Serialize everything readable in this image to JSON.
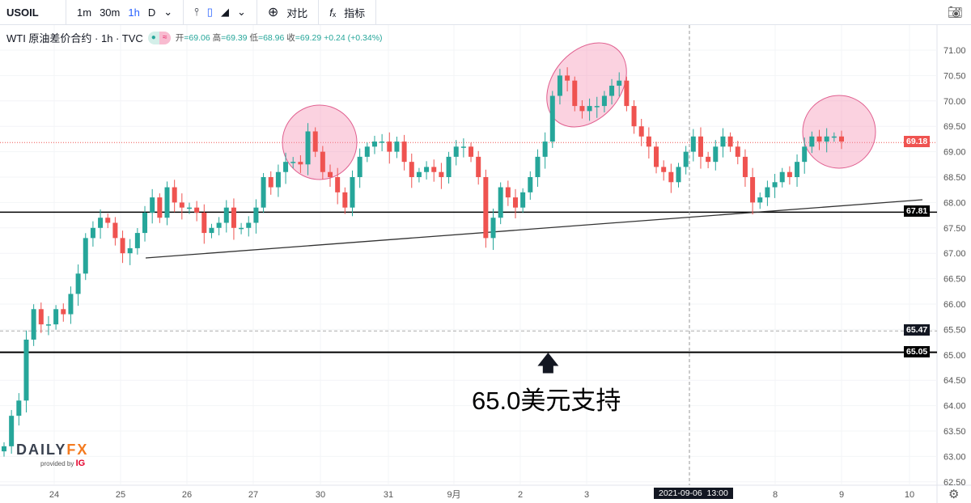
{
  "toolbar": {
    "symbol": "USOIL",
    "intervals": [
      "1m",
      "30m",
      "1h",
      "D"
    ],
    "active_interval": "1h",
    "compare": "对比",
    "indicators": "指标"
  },
  "legend": {
    "title": "WTI 原油差价合约 · 1h · TVC",
    "open_label": "开",
    "open": "=69.06",
    "high_label": "高",
    "high": "=69.39",
    "low_label": "低",
    "low": "=68.96",
    "close_label": "收",
    "close": "=69.29",
    "change": "+0.24 (+0.34%)"
  },
  "annotation": {
    "text": "65.0美元支持"
  },
  "watermark": {
    "brand": "DAILYFX",
    "provided": "provided by",
    "ig": "IG"
  },
  "colors": {
    "up": "#26a69a",
    "down": "#ef5350",
    "highlight": "#f8bbd0"
  },
  "chart_data": {
    "type": "candlestick",
    "title": "WTI 原油差价合约",
    "yticks": [
      "71.00",
      "70.50",
      "70.00",
      "69.50",
      "69.00",
      "68.50",
      "68.00",
      "67.50",
      "67.00",
      "66.50",
      "66.00",
      "65.50",
      "65.00",
      "64.50",
      "64.00",
      "63.50",
      "63.00",
      "62.50"
    ],
    "ylim": [
      62.5,
      71.0
    ],
    "xticks": [
      "24",
      "25",
      "26",
      "27",
      "30",
      "31",
      "9月",
      "2",
      "3",
      "8",
      "9",
      "10"
    ],
    "crosshair_label": "2021-09-06  13:00",
    "price_labels": {
      "last": "69.18",
      "resistance": "67.81",
      "level": "65.47",
      "support": "65.05"
    },
    "horizontal_lines": [
      67.81,
      65.05
    ],
    "dashed_line": 65.47,
    "last_price_line": 69.18,
    "closes": [
      63.2,
      63.8,
      64.1,
      65.3,
      65.9,
      65.6,
      65.6,
      65.9,
      65.8,
      66.2,
      66.6,
      67.3,
      67.5,
      67.7,
      67.6,
      67.3,
      67.0,
      67.1,
      67.4,
      67.8,
      68.1,
      67.7,
      68.3,
      68.0,
      67.9,
      67.9,
      67.8,
      67.4,
      67.5,
      67.6,
      67.9,
      67.5,
      67.5,
      67.6,
      67.9,
      68.5,
      68.3,
      68.6,
      68.8,
      68.8,
      68.75,
      69.4,
      69.0,
      68.6,
      68.5,
      68.2,
      67.9,
      68.5,
      68.9,
      69.1,
      69.2,
      69.2,
      69.0,
      69.2,
      68.8,
      68.5,
      68.6,
      68.7,
      68.6,
      68.5,
      68.9,
      69.1,
      69.1,
      68.9,
      68.5,
      67.3,
      67.7,
      68.3,
      68.1,
      67.9,
      68.2,
      68.5,
      68.9,
      69.2,
      70.1,
      70.5,
      70.4,
      69.9,
      69.8,
      69.9,
      69.9,
      70.1,
      70.3,
      70.4,
      69.9,
      69.5,
      69.3,
      69.1,
      68.7,
      68.6,
      68.4,
      68.7,
      69.0,
      69.3,
      68.9,
      68.8,
      69.1,
      69.3,
      69.1,
      68.9,
      68.5,
      68.0,
      68.1,
      68.3,
      68.4,
      68.6,
      68.5,
      68.8,
      69.1,
      69.3,
      69.2,
      69.3,
      69.3,
      69.2
    ]
  }
}
